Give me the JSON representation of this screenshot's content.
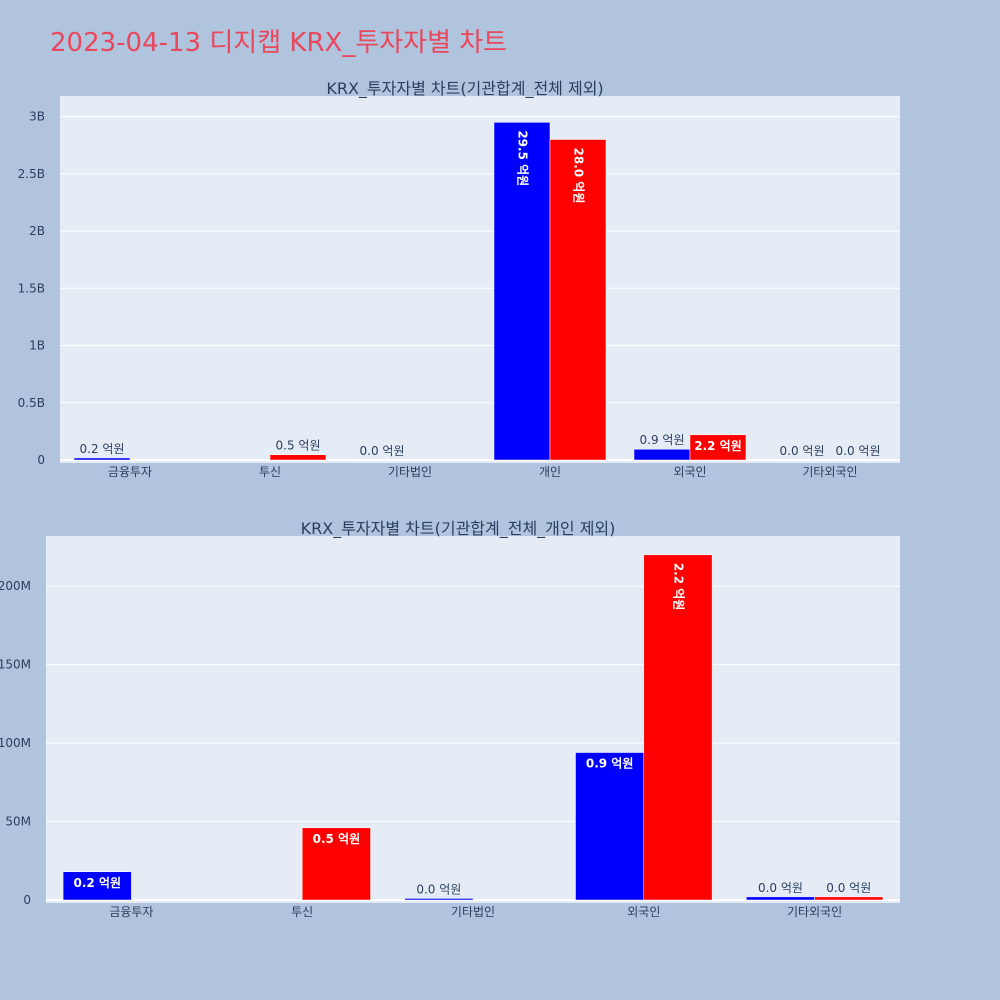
{
  "page": {
    "title": "2023-04-13 디지캡 KRX_투자자별 차트"
  },
  "colors": {
    "background": "#b0c4de",
    "plot_bg": "#e5ecf6",
    "title": "#e8475c",
    "text": "#2a3f5f",
    "series_a": "#0000ff",
    "series_b": "#ff0000"
  },
  "chart_data": [
    {
      "type": "bar",
      "title": "KRX_투자자별 차트(기관합계_전체 제외)",
      "categories": [
        "금융투자",
        "투신",
        "기타법인",
        "개인",
        "외국인",
        "기타외국인"
      ],
      "y_ticks": [
        {
          "value": 0,
          "label": "0"
        },
        {
          "value": 500000000,
          "label": "0.5B"
        },
        {
          "value": 1000000000,
          "label": "1B"
        },
        {
          "value": 1500000000,
          "label": "1.5B"
        },
        {
          "value": 2000000000,
          "label": "2B"
        },
        {
          "value": 2500000000,
          "label": "2.5B"
        },
        {
          "value": 3000000000,
          "label": "3B"
        }
      ],
      "ylim": [
        0,
        3180000000
      ],
      "series": [
        {
          "color": "#0000ff",
          "values": [
            18000000,
            0,
            2000000,
            2950000000,
            94000000,
            2000000
          ],
          "labels": [
            "0.2 억원",
            "",
            "0.0 억원",
            "29.5 억원",
            "0.9 억원",
            "0.0 억원"
          ]
        },
        {
          "color": "#ff0000",
          "values": [
            0,
            46000000,
            0,
            2800000000,
            220000000,
            2000000
          ],
          "labels": [
            "",
            "0.5 억원",
            "",
            "28.0 억원",
            "2.2 억원",
            "0.0 억원"
          ]
        }
      ]
    },
    {
      "type": "bar",
      "title": "KRX_투자자별 차트(기관합계_전체_개인 제외)",
      "categories": [
        "금융투자",
        "투신",
        "기타법인",
        "외국인",
        "기타외국인"
      ],
      "y_ticks": [
        {
          "value": 0,
          "label": "0"
        },
        {
          "value": 50000000,
          "label": "50M"
        },
        {
          "value": 100000000,
          "label": "100M"
        },
        {
          "value": 150000000,
          "label": "150M"
        },
        {
          "value": 200000000,
          "label": "200M"
        }
      ],
      "ylim": [
        0,
        232000000
      ],
      "series": [
        {
          "color": "#0000ff",
          "values": [
            18000000,
            0,
            1000000,
            94000000,
            2000000
          ],
          "labels": [
            "0.2 억원",
            "",
            "0.0 억원",
            "0.9 억원",
            "0.0 억원"
          ]
        },
        {
          "color": "#ff0000",
          "values": [
            0,
            46000000,
            0,
            220000000,
            2000000
          ],
          "labels": [
            "",
            "0.5 억원",
            "",
            "2.2 억원",
            "0.0 억원"
          ]
        }
      ]
    }
  ]
}
